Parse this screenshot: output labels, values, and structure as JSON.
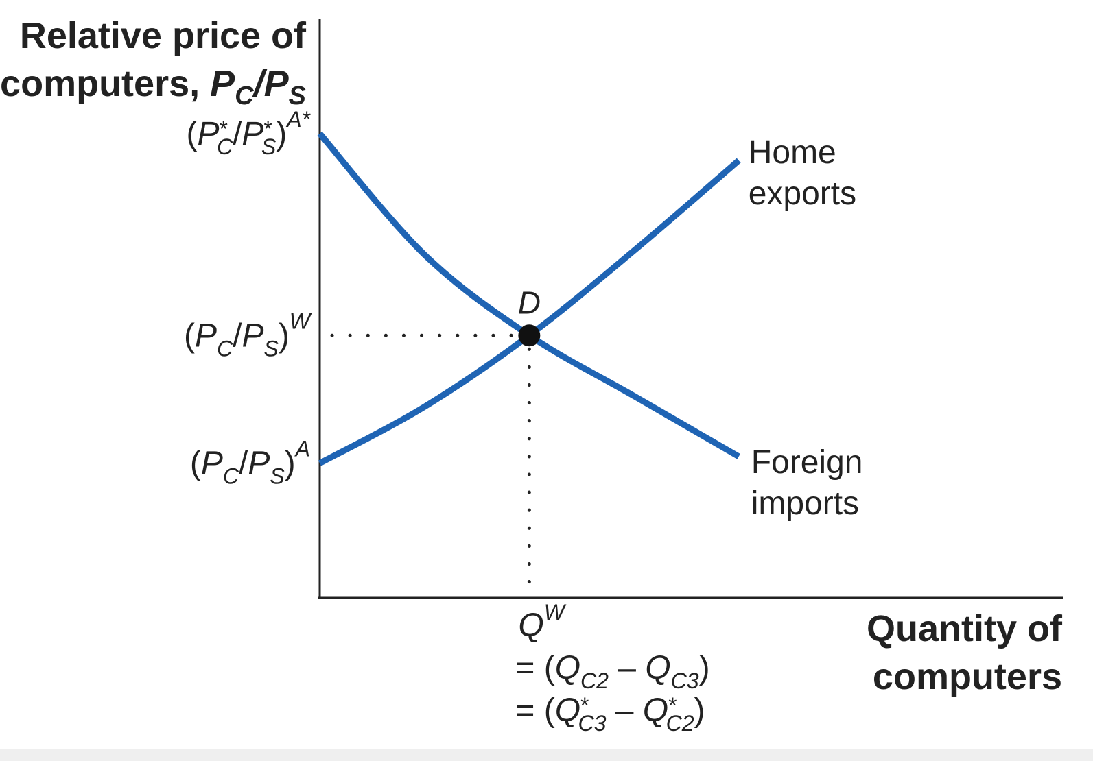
{
  "chart_data": {
    "type": "line",
    "title": "",
    "ylabel": {
      "line1": "Relative price of",
      "line2_text": "computers, ",
      "line2_math": "P",
      "line2_sub1": "C",
      "line2_sep": "/P",
      "line2_sub2": "S"
    },
    "xlabel": {
      "line1": "Quantity of",
      "line2": "computers"
    },
    "x": [
      0,
      1,
      2,
      3,
      4
    ],
    "xlim": [
      0,
      7.1
    ],
    "ylim": [
      0,
      4.3
    ],
    "series": [
      {
        "name": "Home exports",
        "label_line1": "Home",
        "label_line2": "exports",
        "color": "#1f64b4",
        "values": [
          1.0,
          1.42,
          1.95,
          2.58,
          3.25
        ]
      },
      {
        "name": "Foreign imports",
        "label_line1": "Foreign",
        "label_line2": "imports",
        "color": "#1f64b4",
        "values": [
          3.45,
          2.55,
          1.95,
          1.5,
          1.05
        ]
      }
    ],
    "equilibrium": {
      "label": "D",
      "x": 2,
      "y": 1.95,
      "color": "#111111"
    },
    "y_ticks": [
      {
        "value": 3.45,
        "base_open": "(",
        "P1": "P",
        "sup1": "*",
        "sub1": "C",
        "slash": "/",
        "P2": "P",
        "sup2": "*",
        "sub2": "S",
        "close": ")",
        "exp": "A*"
      },
      {
        "value": 1.95,
        "base_open": "(",
        "P1": "P",
        "sub1": "C",
        "slash": "/",
        "P2": "P",
        "sub2": "S",
        "close": ")",
        "exp": "W"
      },
      {
        "value": 1.0,
        "base_open": "(",
        "P1": "P",
        "sub1": "C",
        "slash": "/",
        "P2": "P",
        "sub2": "S",
        "close": ")",
        "exp": "A"
      }
    ],
    "x_ticks": [
      {
        "value": 2,
        "main": "Q",
        "exp": "W",
        "eq1": {
          "prefix": "= (",
          "Q1": "Q",
          "sub1": "C2",
          "minus": " – ",
          "Q2": "Q",
          "sub2": "C3",
          "close": ")"
        },
        "eq2": {
          "prefix": "= (",
          "Q1": "Q",
          "sup1": "*",
          "sub1": "C3",
          "minus": " – ",
          "Q2": "Q",
          "sup2": "*",
          "sub2": "C2",
          "close": ")"
        }
      }
    ],
    "grid": false,
    "guide_lines": "dotted"
  },
  "colors": {
    "curve": "#1f64b4",
    "axis": "#222222",
    "text": "#222222"
  }
}
